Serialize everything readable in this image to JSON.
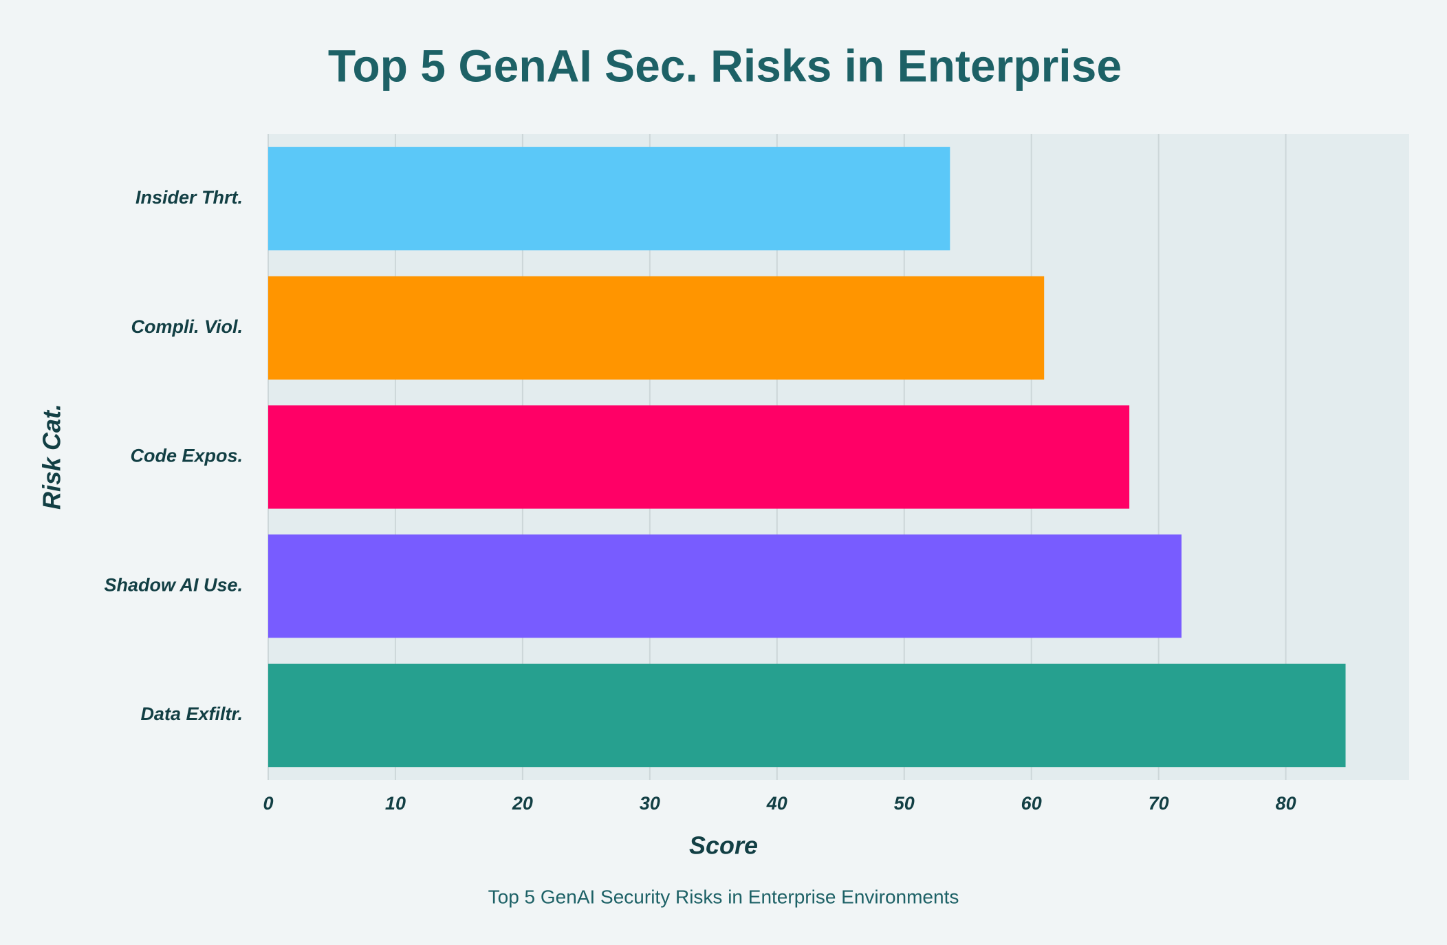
{
  "chart_data": {
    "type": "bar",
    "orientation": "horizontal",
    "title": "Top 5 GenAI Sec. Risks in Enterprise",
    "subtitle": "Top 5 GenAI Security Risks in Enterprise Environments",
    "x_label": "Score",
    "y_label": "Risk Cat.",
    "categories": [
      "Insider Thrt.",
      "Compli. Viol.",
      "Code Expos.",
      "Shadow AI Use.",
      "Data Exfiltr."
    ],
    "values": [
      53.6,
      61,
      67.7,
      71.8,
      84.7
    ],
    "colors": [
      "#5bc8f8",
      "#ff9500",
      "#ff0066",
      "#785cff",
      "#26a08f"
    ],
    "xlim": [
      0,
      89.7
    ],
    "xticks": [
      0,
      10,
      20,
      30,
      40,
      50,
      60,
      70,
      80
    ],
    "grid": true
  }
}
